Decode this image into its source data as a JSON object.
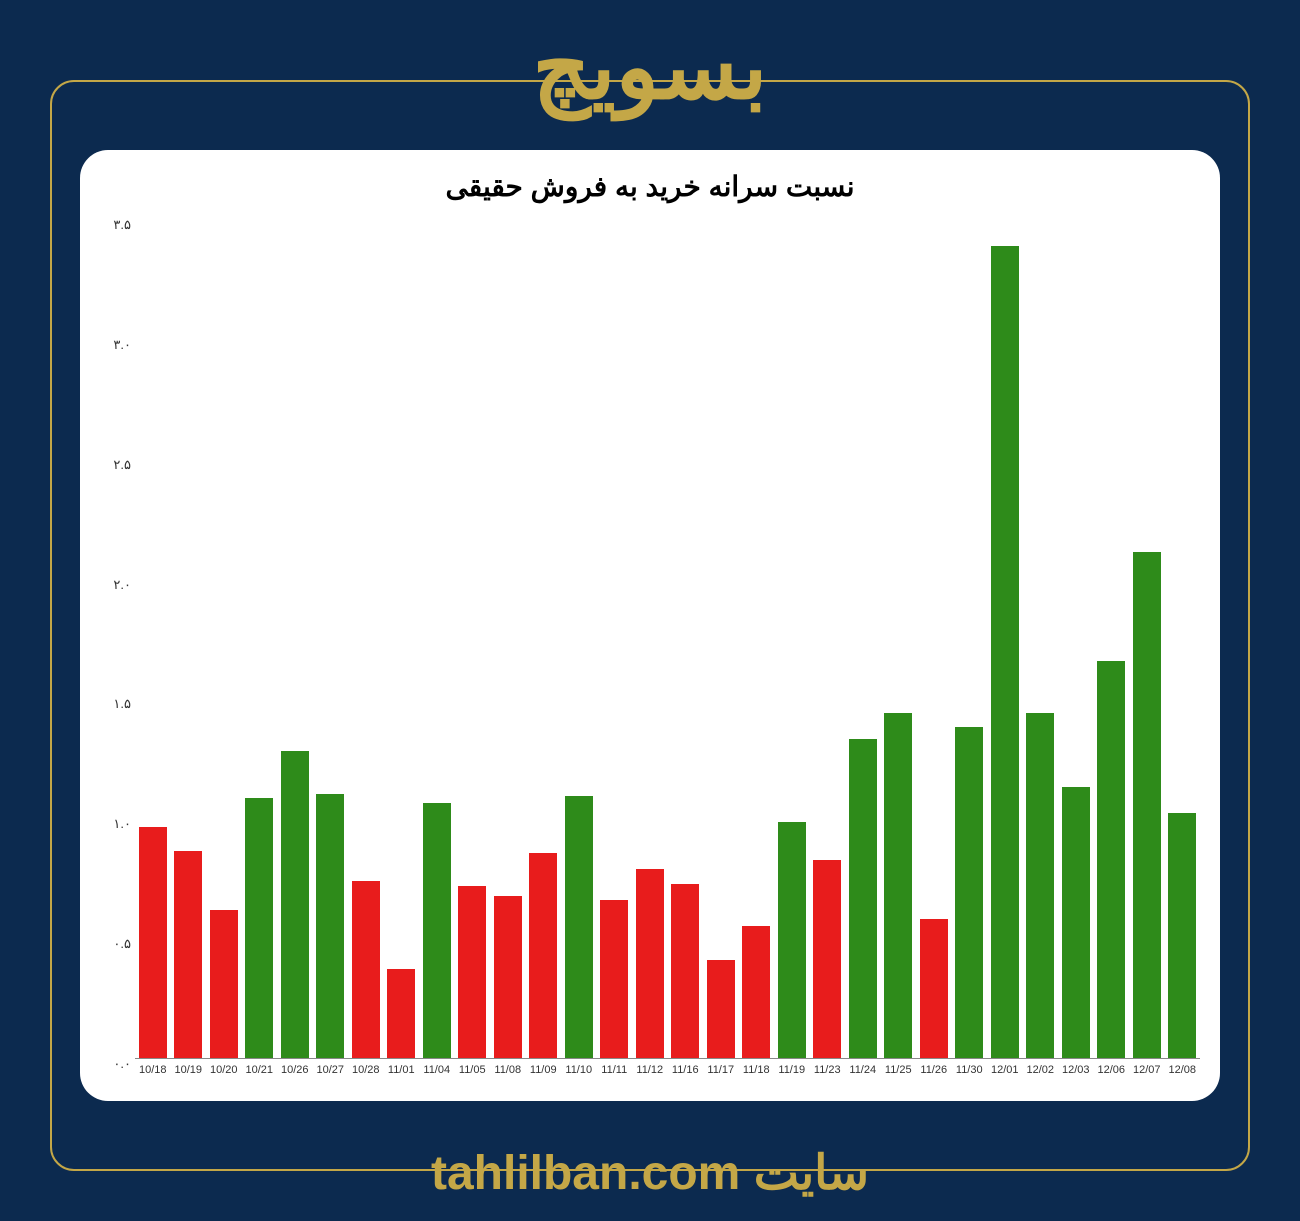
{
  "header": {
    "title": "بسویچ"
  },
  "footer": {
    "text": "سایت tahlilban.com"
  },
  "chart": {
    "type": "bar",
    "title": "نسبت سرانه خرید به فروش حقیقی",
    "title_fontsize": 28,
    "title_color": "#000000",
    "background_color": "#ffffff",
    "ymin": 0.0,
    "ymax": 3.55,
    "yticks": [
      {
        "value": 0.0,
        "label": "۰.۰"
      },
      {
        "value": 0.5,
        "label": "۰.۵"
      },
      {
        "value": 1.0,
        "label": "۱.۰"
      },
      {
        "value": 1.5,
        "label": "۱.۵"
      },
      {
        "value": 2.0,
        "label": "۲.۰"
      },
      {
        "value": 2.5,
        "label": "۲.۵"
      },
      {
        "value": 3.0,
        "label": "۳.۰"
      },
      {
        "value": 3.5,
        "label": "۳.۵"
      }
    ],
    "bar_width": 0.8,
    "green_color": "#2e8b1a",
    "red_color": "#e81c1c",
    "categories": [
      "10/18",
      "10/19",
      "10/20",
      "10/21",
      "10/26",
      "10/27",
      "10/28",
      "11/01",
      "11/04",
      "11/05",
      "11/08",
      "11/09",
      "11/10",
      "11/11",
      "11/12",
      "11/16",
      "11/17",
      "11/18",
      "11/19",
      "11/23",
      "11/24",
      "11/25",
      "11/26",
      "11/30",
      "12/01",
      "12/02",
      "12/03",
      "12/06",
      "12/07",
      "12/08"
    ],
    "values": [
      0.98,
      0.88,
      0.63,
      1.1,
      1.3,
      1.12,
      0.75,
      0.38,
      1.08,
      0.73,
      0.69,
      0.87,
      1.11,
      0.67,
      0.8,
      0.74,
      0.42,
      0.56,
      1.0,
      0.84,
      1.35,
      1.46,
      0.59,
      1.4,
      3.43,
      1.46,
      1.15,
      1.68,
      2.14,
      1.04
    ],
    "colors": [
      "#e81c1c",
      "#e81c1c",
      "#e81c1c",
      "#2e8b1a",
      "#2e8b1a",
      "#2e8b1a",
      "#e81c1c",
      "#e81c1c",
      "#2e8b1a",
      "#e81c1c",
      "#e81c1c",
      "#e81c1c",
      "#2e8b1a",
      "#e81c1c",
      "#e81c1c",
      "#e81c1c",
      "#e81c1c",
      "#e81c1c",
      "#2e8b1a",
      "#e81c1c",
      "#2e8b1a",
      "#2e8b1a",
      "#e81c1c",
      "#2e8b1a",
      "#2e8b1a",
      "#2e8b1a",
      "#2e8b1a",
      "#2e8b1a",
      "#2e8b1a",
      "#2e8b1a"
    ],
    "axis_label_fontsize": 13,
    "x_label_fontsize": 11,
    "axis_label_color": "#333333"
  },
  "frame": {
    "border_color": "#c4a747",
    "background_color": "#0c2a4f"
  }
}
